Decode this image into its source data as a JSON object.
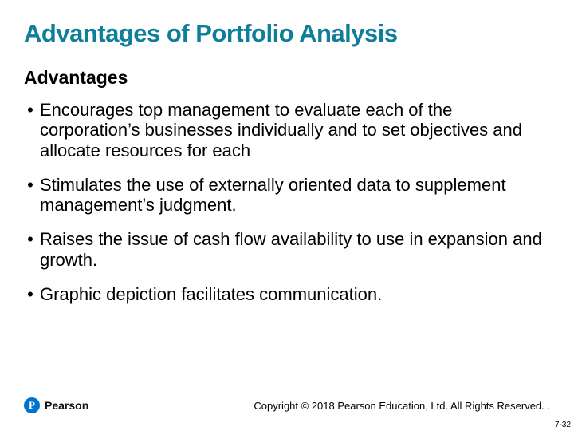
{
  "title": {
    "text": "Advantages of Portfolio Analysis",
    "color": "#0e7e9b",
    "fontsize": 31
  },
  "subtitle": {
    "text": "Advantages",
    "fontsize": 23
  },
  "bullets": {
    "fontsize": 22,
    "items": [
      "Encourages top management to evaluate each of the corporation’s businesses individually and to set objectives and allocate resources for each",
      "Stimulates the use of externally oriented data to supplement management’s judgment.",
      "Raises the issue of cash flow availability to use in expansion and growth.",
      "Graphic depiction facilitates communication."
    ]
  },
  "logo": {
    "mark_letter": "P",
    "mark_bg": "#0073cf",
    "mark_fg": "#ffffff",
    "brand": "Pearson",
    "brand_color": "#111111",
    "brand_fontsize": 14
  },
  "copyright": {
    "text": "Copyright © 2018 Pearson Education, Ltd. All Rights Reserved. .",
    "fontsize": 13
  },
  "pagenum": {
    "text": "7-32",
    "fontsize": 10
  }
}
